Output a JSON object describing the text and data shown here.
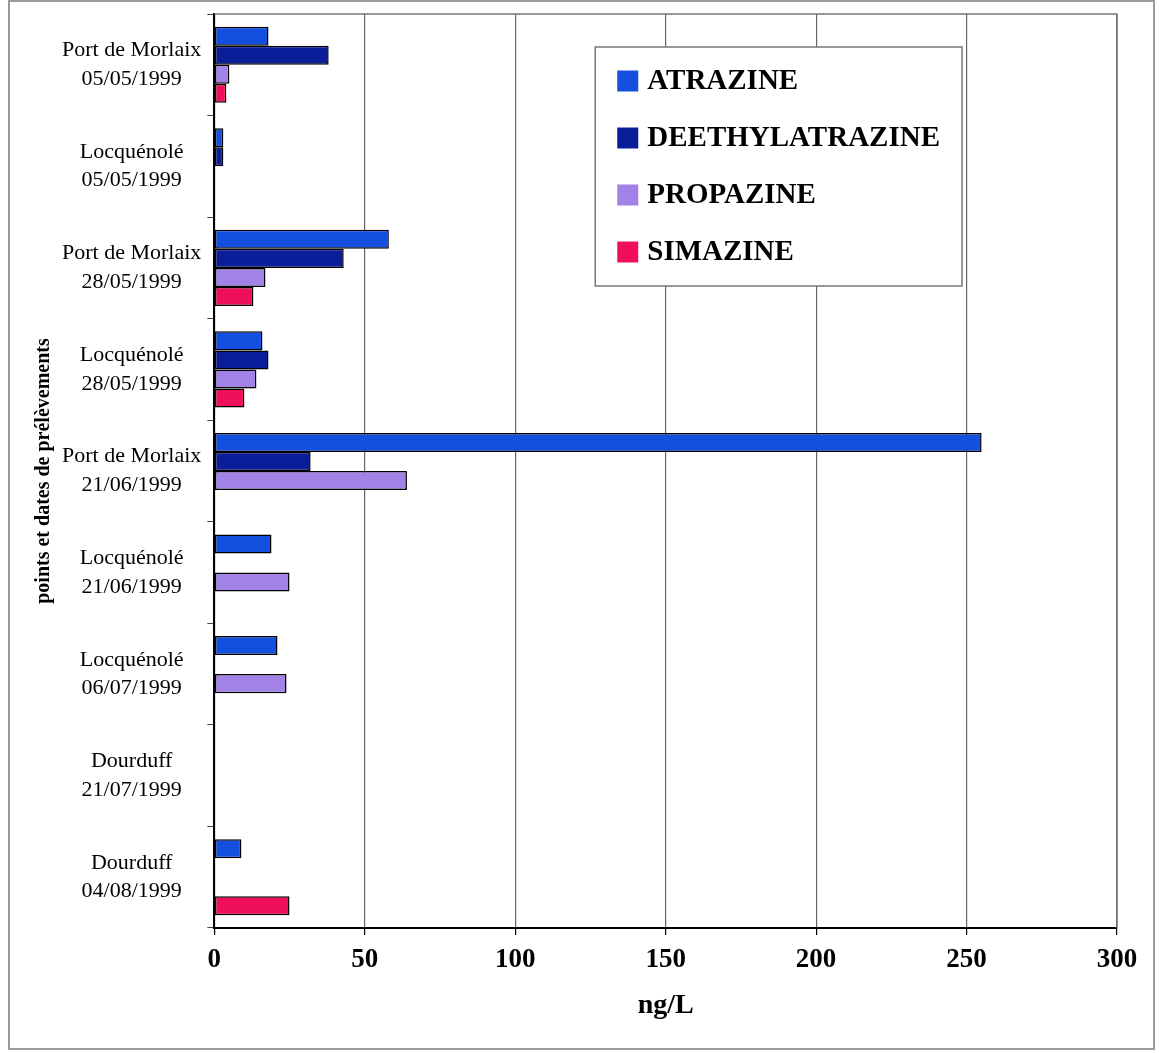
{
  "chart_data": {
    "type": "bar",
    "orientation": "horizontal",
    "xlabel": "ng/L",
    "ylabel": "points et dates de prélèvements",
    "categories": [
      "Port de Morlaix\n05/05/1999",
      "Locquénolé\n05/05/1999",
      "Port de Morlaix\n28/05/1999",
      "Locquénolé\n28/05/1999",
      "Port de Morlaix\n21/06/1999",
      "Locquénolé\n21/06/1999",
      "Locquénolé\n06/07/1999",
      "Dourduff\n21/07/1999",
      "Dourduff\n04/08/1999"
    ],
    "series": [
      {
        "name": "ATRAZINE",
        "color": "#1450e0",
        "values": [
          18,
          3,
          58,
          16,
          255,
          19,
          21,
          null,
          9
        ]
      },
      {
        "name": "DEETHYLATRAZINE",
        "color": "#0a1e9a",
        "values": [
          38,
          3,
          43,
          18,
          32,
          null,
          null,
          null,
          null
        ]
      },
      {
        "name": "PROPAZINE",
        "color": "#a282e6",
        "values": [
          5,
          null,
          17,
          14,
          64,
          25,
          24,
          null,
          null
        ]
      },
      {
        "name": "SIMAZINE",
        "color": "#f0105a",
        "values": [
          4,
          null,
          13,
          10,
          null,
          null,
          null,
          null,
          25
        ]
      }
    ],
    "xlim": [
      0,
      300
    ],
    "xticks": [
      0,
      50,
      100,
      150,
      200,
      250,
      300
    ],
    "grid": "x",
    "legend": "top right"
  }
}
